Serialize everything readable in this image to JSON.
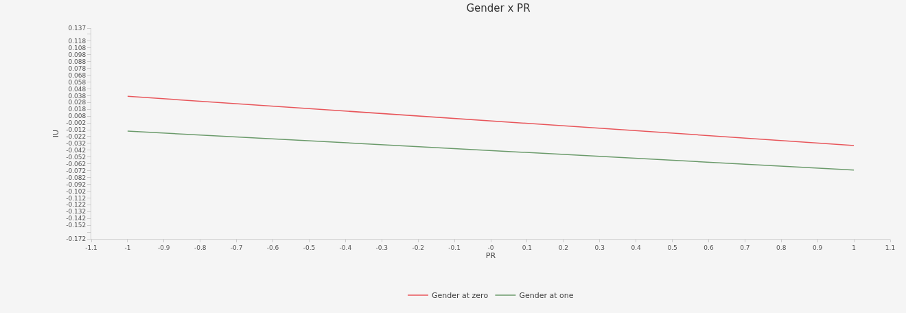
{
  "chart_data": {
    "type": "line",
    "title": "Gender x PR",
    "xlabel": "PR",
    "ylabel": "IU",
    "x": [
      -1,
      1
    ],
    "series": [
      {
        "name": "Gender at zero",
        "color": "#e8555a",
        "values": [
          0.037,
          -0.035
        ]
      },
      {
        "name": "Gender at one",
        "color": "#6a9a6a",
        "values": [
          -0.014,
          -0.071
        ]
      }
    ],
    "xlim": [
      -1.1,
      1.1
    ],
    "xticks": [
      -1.1,
      {
        "value": -1,
        "label": "-1"
      },
      -0.9,
      -0.8,
      -0.7,
      -0.6,
      -0.5,
      -0.4,
      -0.3,
      -0.2,
      -0.1,
      {
        "value": 0,
        "label": "-0"
      },
      0.1,
      0.2,
      0.3,
      0.4,
      0.5,
      0.6,
      0.7,
      0.8,
      0.9,
      {
        "value": 1,
        "label": "1"
      },
      1.1
    ],
    "ylim": [
      -0.172,
      0.137
    ],
    "yticks": [
      0.137,
      {
        "value": 0.128,
        "label": null
      },
      0.118,
      0.108,
      0.098,
      0.088,
      0.078,
      0.068,
      0.058,
      0.048,
      0.038,
      0.028,
      0.018,
      0.008,
      -0.002,
      -0.012,
      -0.022,
      -0.032,
      -0.042,
      -0.052,
      -0.062,
      -0.072,
      -0.082,
      -0.092,
      -0.102,
      -0.112,
      -0.122,
      -0.132,
      -0.142,
      -0.152,
      {
        "value": -0.162,
        "label": null
      },
      -0.172
    ],
    "grid": false,
    "legend": "bottom",
    "marker": "none",
    "line_style": "solid"
  }
}
